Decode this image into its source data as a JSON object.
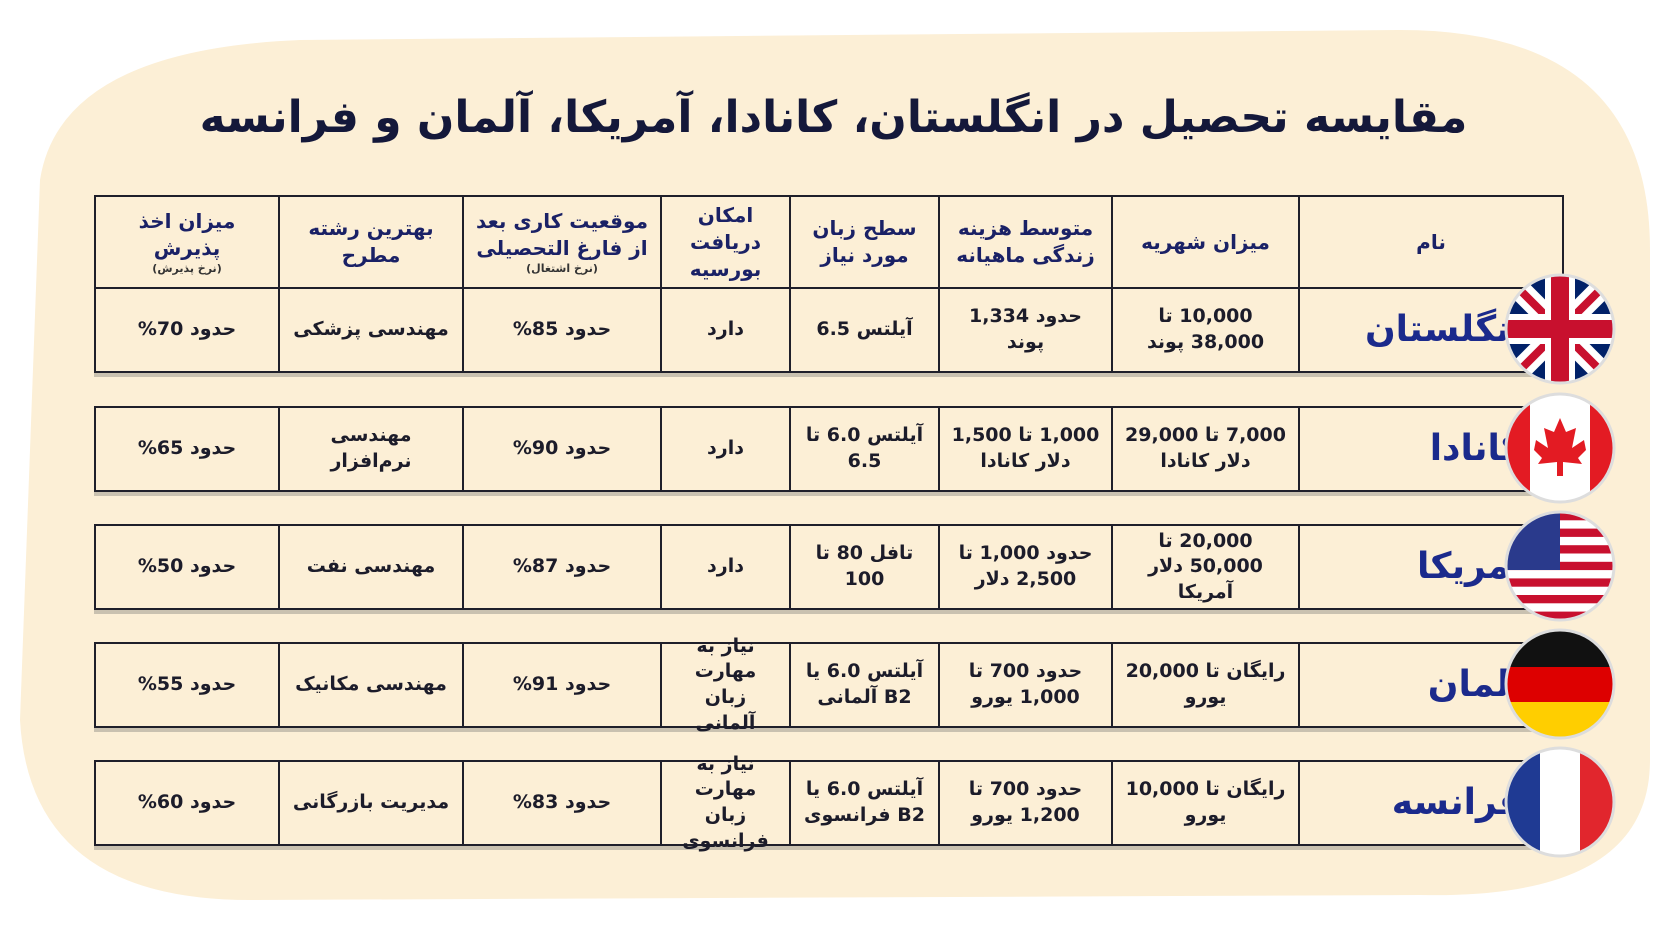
{
  "title": "مقایسه تحصیل در انگلستان، کانادا، آمریکا، آلمان و فرانسه",
  "table": {
    "header": [
      {
        "text": "نام"
      },
      {
        "text": "میزان شهریه"
      },
      {
        "text": "متوسط هزینه زندگی ماهیانه"
      },
      {
        "text": "سطح زبان مورد نیاز"
      },
      {
        "text": "امکان دریافت بورسیه"
      },
      {
        "text": "موقعیت کاری بعد از فارغ التحصیلی",
        "note": "(نرخ اشتغال)"
      },
      {
        "text": "بهترین رشته مطرح"
      },
      {
        "text": "میزان اخذ پذیرش",
        "note": "(نرخ پذیرش)"
      }
    ],
    "rows": [
      [
        "انگلستان",
        "10,000 تا 38,000 پوند",
        "حدود 1,334 پوند",
        "آیلتس 6.5",
        "دارد",
        "حدود 85%",
        "مهندسی پزشکی",
        "حدود 70%"
      ],
      [
        "کانادا",
        "7,000 تا 29,000 دلار کانادا",
        "1,000 تا 1,500 دلار کانادا",
        "آیلتس 6.0 تا 6.5",
        "دارد",
        "حدود 90%",
        "مهندسی نرم‌افزار",
        "حدود 65%"
      ],
      [
        "آمریکا",
        "20,000 تا 50,000 دلار آمریکا",
        "حدود 1,000 تا 2,500 دلار",
        "تافل 80 تا 100",
        "دارد",
        "حدود 87%",
        "مهندسی نفت",
        "حدود 50%"
      ],
      [
        "آلمان",
        "رایگان تا 20,000 یورو",
        "حدود 700 تا 1,000 یورو",
        "آیلتس 6.0 یا B2 آلمانی",
        "نیاز به مهارت زبان آلمانی",
        "حدود 91%",
        "مهندسی مکانیک",
        "حدود 55%"
      ],
      [
        "فرانسه",
        "رایگان تا 10,000 یورو",
        "حدود 700 تا 1,200 یورو",
        "آیلتس 6.0 یا B2 فرانسوی",
        "نیاز به مهارت زبان فرانسوی",
        "حدود 83%",
        "مدیریت بازرگانی",
        "حدود 60%"
      ]
    ]
  }
}
